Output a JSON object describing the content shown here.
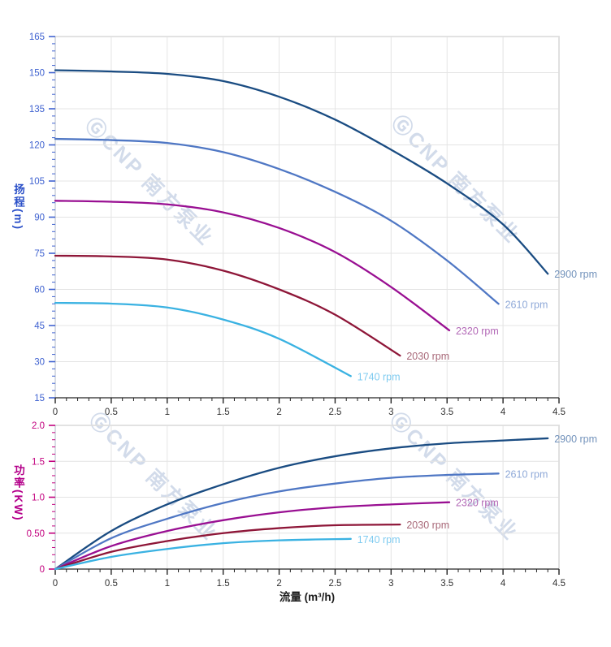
{
  "watermark": {
    "text": "ⒼCNP 南方泵业",
    "color": "#c3d0e4"
  },
  "axes": {
    "head_title": "扬程(m)",
    "power_title": "功率(KW)",
    "flow_title": "流量 (m³/h)"
  },
  "chart_data": [
    {
      "type": "line",
      "name": "head-vs-flow",
      "title": "",
      "xlabel": "流量 (m³/h)",
      "ylabel": "扬程 (m)",
      "xlim": [
        0,
        4.5
      ],
      "ylim": [
        15,
        165
      ],
      "grid": true,
      "legend_position": "at-curve-ends",
      "x_tick_values": [
        0,
        0.5,
        1,
        1.5,
        2,
        2.5,
        3,
        3.5,
        4,
        4.5
      ],
      "x_tick_labels": [
        "0",
        "0.5",
        "1",
        "1.5",
        "2",
        "2.5",
        "3",
        "3.5",
        "4",
        "4.5"
      ],
      "x_minor_step": 0.1,
      "y_tick_values": [
        15,
        30,
        45,
        60,
        75,
        90,
        105,
        120,
        135,
        150,
        165
      ],
      "y_tick_labels": [
        "15",
        "30",
        "45",
        "60",
        "75",
        "90",
        "105",
        "120",
        "135",
        "150",
        "165"
      ],
      "y_minor_step": 3,
      "y_tick_color": "#3f62d0",
      "x_tick_color": "#333333",
      "series": [
        {
          "name": "2900 rpm",
          "color": "#1a4c82",
          "label_color": "#7292bb",
          "x": [
            0,
            0.5,
            1,
            1.5,
            2,
            2.5,
            3,
            3.5,
            4,
            4.4
          ],
          "y": [
            151,
            150.5,
            149.5,
            146.5,
            140,
            130.5,
            118,
            104,
            87,
            66.5
          ]
        },
        {
          "name": "2610 rpm",
          "color": "#4f77c4",
          "label_color": "#8fa9d8",
          "x": [
            0,
            0.5,
            1,
            1.5,
            2,
            2.5,
            3,
            3.5,
            3.96
          ],
          "y": [
            122.5,
            122,
            120.8,
            117,
            110,
            100.5,
            88.5,
            72,
            54
          ]
        },
        {
          "name": "2320 rpm",
          "color": "#990f92",
          "label_color": "#b268b6",
          "x": [
            0,
            0.5,
            1,
            1.5,
            2,
            2.5,
            3,
            3.52
          ],
          "y": [
            96.8,
            96.4,
            95.3,
            92,
            85.5,
            75.5,
            61,
            43
          ]
        },
        {
          "name": "2030 rpm",
          "color": "#8e1638",
          "label_color": "#a86878",
          "x": [
            0,
            0.5,
            1,
            1.5,
            2,
            2.5,
            3.08
          ],
          "y": [
            74,
            73.7,
            72.4,
            67.8,
            60,
            49.5,
            32.5
          ]
        },
        {
          "name": "1740 rpm",
          "color": "#3ab2e2",
          "label_color": "#7fcbf0",
          "x": [
            0,
            0.5,
            1,
            1.5,
            2,
            2.64
          ],
          "y": [
            54.4,
            54.1,
            52.5,
            47.5,
            39.5,
            24
          ]
        }
      ]
    },
    {
      "type": "line",
      "name": "power-vs-flow",
      "title": "",
      "xlabel": "流量 (m³/h)",
      "ylabel": "功率 (KW)",
      "xlim": [
        0,
        4.5
      ],
      "ylim": [
        0,
        2
      ],
      "grid": true,
      "legend_position": "at-curve-ends",
      "x_tick_values": [
        0,
        0.5,
        1,
        1.5,
        2,
        2.5,
        3,
        3.5,
        4,
        4.5
      ],
      "x_tick_labels": [
        "0",
        "0.5",
        "1",
        "1.5",
        "2",
        "2.5",
        "3",
        "3.5",
        "4",
        "4.5"
      ],
      "x_minor_step": 0.1,
      "y_tick_values": [
        0,
        0.5,
        1,
        1.5,
        2
      ],
      "y_tick_labels": [
        "0",
        "0.50",
        "1.0",
        "1.5",
        "2.0"
      ],
      "y_minor_step": 0.1,
      "y_tick_color": "#c2007e",
      "x_tick_color": "#333333",
      "series": [
        {
          "name": "2900 rpm",
          "color": "#1a4c82",
          "label_color": "#7292bb",
          "x": [
            0,
            0.5,
            1,
            1.5,
            2,
            2.5,
            3,
            3.5,
            4,
            4.4
          ],
          "y": [
            0,
            0.53,
            0.9,
            1.18,
            1.41,
            1.57,
            1.68,
            1.75,
            1.79,
            1.82
          ]
        },
        {
          "name": "2610 rpm",
          "color": "#4f77c4",
          "label_color": "#8fa9d8",
          "x": [
            0,
            0.5,
            1,
            1.5,
            2,
            2.5,
            3,
            3.5,
            3.96
          ],
          "y": [
            0,
            0.43,
            0.7,
            0.92,
            1.08,
            1.19,
            1.27,
            1.31,
            1.33
          ]
        },
        {
          "name": "2320 rpm",
          "color": "#990f92",
          "label_color": "#b268b6",
          "x": [
            0,
            0.5,
            1,
            1.5,
            2,
            2.5,
            3,
            3.52
          ],
          "y": [
            0,
            0.32,
            0.53,
            0.68,
            0.79,
            0.86,
            0.9,
            0.93
          ]
        },
        {
          "name": "2030 rpm",
          "color": "#8e1638",
          "label_color": "#a86878",
          "x": [
            0,
            0.5,
            1,
            1.5,
            2,
            2.5,
            3.08
          ],
          "y": [
            0,
            0.24,
            0.39,
            0.5,
            0.57,
            0.61,
            0.62
          ]
        },
        {
          "name": "1740 rpm",
          "color": "#3ab2e2",
          "label_color": "#7fcbf0",
          "x": [
            0,
            0.5,
            1,
            1.5,
            2,
            2.64
          ],
          "y": [
            0,
            0.17,
            0.28,
            0.36,
            0.4,
            0.42
          ]
        }
      ]
    }
  ]
}
